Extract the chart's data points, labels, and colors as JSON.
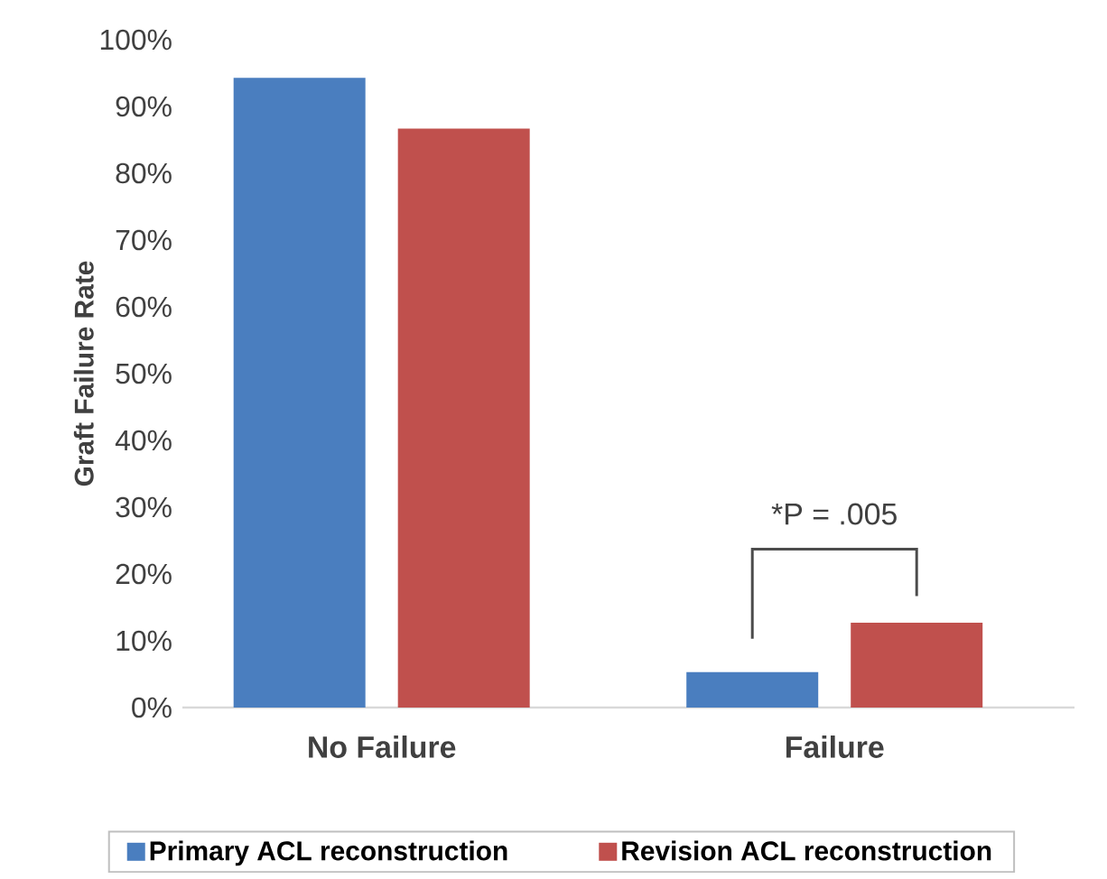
{
  "chart_data": {
    "type": "bar",
    "ylabel": "Graft Failure Rate",
    "categories": [
      "No Failure",
      "Failure"
    ],
    "series": [
      {
        "name": "Primary ACL reconstruction",
        "color": "#4a7ebf",
        "values": [
          94.3,
          5.3
        ]
      },
      {
        "name": "Revision ACL reconstruction",
        "color": "#c0504d",
        "values": [
          86.7,
          12.7
        ]
      }
    ],
    "ylim": [
      0,
      100
    ],
    "yticks": [
      {
        "value": 0,
        "label": "0%"
      },
      {
        "value": 10,
        "label": "10%"
      },
      {
        "value": 20,
        "label": "20%"
      },
      {
        "value": 30,
        "label": "30%"
      },
      {
        "value": 40,
        "label": "40%"
      },
      {
        "value": 50,
        "label": "50%"
      },
      {
        "value": 60,
        "label": "60%"
      },
      {
        "value": 70,
        "label": "70%"
      },
      {
        "value": 80,
        "label": "80%"
      },
      {
        "value": 90,
        "label": "90%"
      },
      {
        "value": 100,
        "label": "100%"
      }
    ],
    "annotations": [
      "*P = .005"
    ],
    "legend": "bottom",
    "grid": false
  }
}
